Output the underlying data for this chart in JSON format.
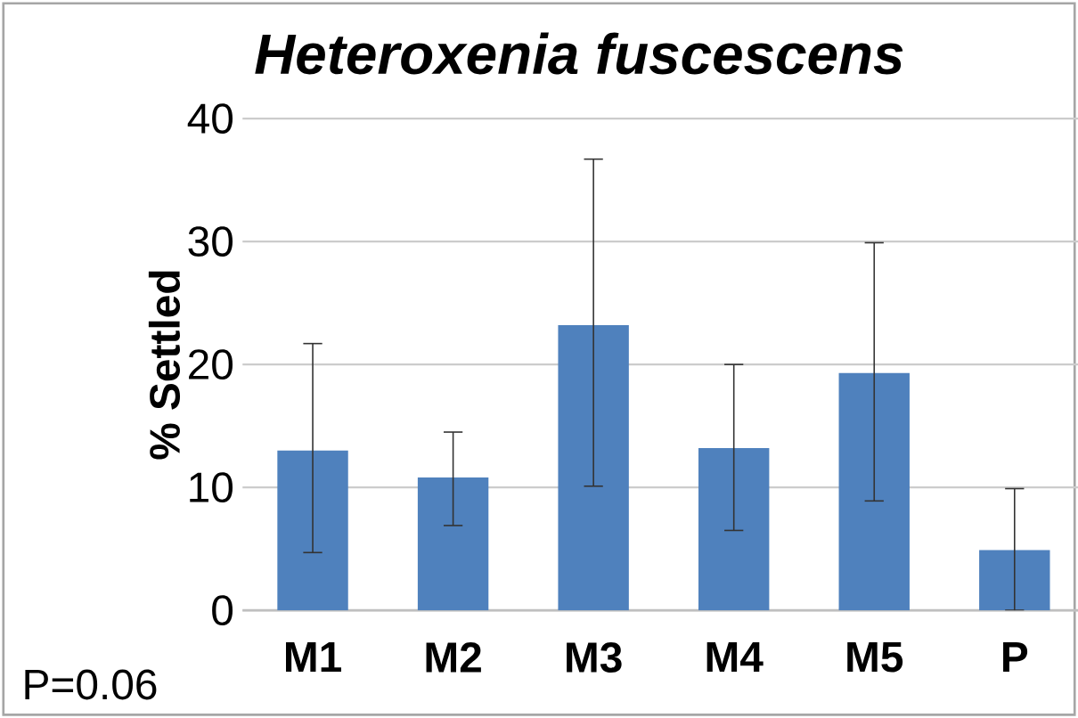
{
  "chart_data": {
    "type": "bar",
    "title": "Heteroxenia fuscescens",
    "ylabel": "% Settled",
    "categories": [
      "M1",
      "M2",
      "M3",
      "M4",
      "M5",
      "P"
    ],
    "values": [
      13.0,
      10.8,
      23.2,
      13.2,
      19.3,
      4.9
    ],
    "errors": [
      [
        4.7,
        21.7
      ],
      [
        6.9,
        14.5
      ],
      [
        10.1,
        36.7
      ],
      [
        6.5,
        20.0
      ],
      [
        8.9,
        29.9
      ],
      [
        0,
        9.9
      ]
    ],
    "color": "#4f81bd",
    "ylim": [
      0,
      40
    ],
    "yticks": [
      0,
      10,
      20,
      30,
      40
    ],
    "grid": "y",
    "annotations": [
      "P=0.06"
    ]
  }
}
